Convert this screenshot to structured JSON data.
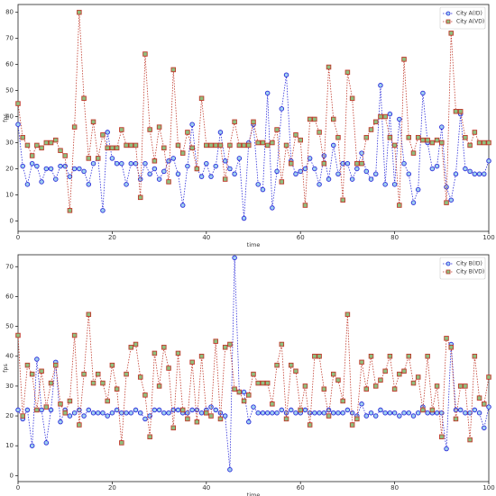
{
  "chart_data": [
    {
      "type": "line",
      "xlabel": "time",
      "ylabel": "fps",
      "legend": "upper right",
      "xlim": [
        0,
        100
      ],
      "ylim": [
        -4,
        83
      ],
      "xticks": [
        0,
        20,
        40,
        60,
        80,
        100
      ],
      "yticks": [
        0,
        10,
        20,
        30,
        40,
        50,
        60,
        70,
        80
      ],
      "x": [
        0,
        1,
        2,
        3,
        4,
        5,
        6,
        7,
        8,
        9,
        10,
        11,
        12,
        13,
        14,
        15,
        16,
        17,
        18,
        19,
        20,
        21,
        22,
        23,
        24,
        25,
        26,
        27,
        28,
        29,
        30,
        31,
        32,
        33,
        34,
        35,
        36,
        37,
        38,
        39,
        40,
        41,
        42,
        43,
        44,
        45,
        46,
        47,
        48,
        49,
        50,
        51,
        52,
        53,
        54,
        55,
        56,
        57,
        58,
        59,
        60,
        61,
        62,
        63,
        64,
        65,
        66,
        67,
        68,
        69,
        70,
        71,
        72,
        73,
        74,
        75,
        76,
        77,
        78,
        79,
        80,
        81,
        82,
        83,
        84,
        85,
        86,
        87,
        88,
        89,
        90,
        91,
        92,
        93,
        94,
        95,
        96,
        97,
        98,
        99,
        100
      ],
      "series": [
        {
          "name": "City A(ID)",
          "color": "#2b2bd9",
          "marker": "circle",
          "values": [
            37,
            21,
            14,
            22,
            21,
            15,
            20,
            20,
            16,
            21,
            21,
            17,
            20,
            20,
            19,
            14,
            22,
            24,
            4,
            34,
            24,
            22,
            22,
            14,
            22,
            22,
            16,
            22,
            18,
            20,
            16,
            19,
            23,
            24,
            18,
            6,
            21,
            37,
            20,
            17,
            22,
            17,
            21,
            34,
            23,
            20,
            18,
            24,
            1,
            30,
            37,
            14,
            12,
            49,
            5,
            19,
            43,
            56,
            23,
            18,
            19,
            20,
            24,
            20,
            14,
            25,
            16,
            29,
            18,
            22,
            22,
            16,
            20,
            26,
            19,
            16,
            18,
            52,
            14,
            41,
            14,
            39,
            22,
            18,
            7,
            12,
            49,
            30,
            20,
            21,
            36,
            13,
            8,
            18,
            41,
            20,
            19,
            18,
            18,
            18,
            23
          ]
        },
        {
          "name": "City A(VD)",
          "color": "#c0392b",
          "marker": "square",
          "values": [
            45,
            32,
            29,
            25,
            29,
            28,
            30,
            30,
            31,
            27,
            25,
            4,
            36,
            80,
            47,
            24,
            38,
            24,
            33,
            28,
            28,
            28,
            35,
            29,
            29,
            29,
            9,
            64,
            35,
            23,
            36,
            28,
            15,
            58,
            29,
            26,
            34,
            28,
            20,
            47,
            29,
            29,
            29,
            29,
            16,
            29,
            38,
            29,
            29,
            29,
            38,
            30,
            30,
            29,
            30,
            35,
            15,
            29,
            22,
            33,
            31,
            6,
            39,
            39,
            34,
            22,
            59,
            39,
            32,
            8,
            57,
            47,
            22,
            22,
            32,
            35,
            38,
            40,
            40,
            32,
            29,
            6,
            62,
            32,
            26,
            32,
            31,
            31,
            30,
            31,
            30,
            7,
            72,
            42,
            42,
            32,
            29,
            34,
            30,
            30,
            30
          ]
        }
      ]
    },
    {
      "type": "line",
      "xlabel": "time",
      "ylabel": "fps",
      "legend": "upper right",
      "xlim": [
        0,
        100
      ],
      "ylim": [
        -2,
        74
      ],
      "xticks": [
        0,
        20,
        40,
        60,
        80,
        100
      ],
      "yticks": [
        0,
        10,
        20,
        30,
        40,
        50,
        60,
        70
      ],
      "x": [
        0,
        1,
        2,
        3,
        4,
        5,
        6,
        7,
        8,
        9,
        10,
        11,
        12,
        13,
        14,
        15,
        16,
        17,
        18,
        19,
        20,
        21,
        22,
        23,
        24,
        25,
        26,
        27,
        28,
        29,
        30,
        31,
        32,
        33,
        34,
        35,
        36,
        37,
        38,
        39,
        40,
        41,
        42,
        43,
        44,
        45,
        46,
        47,
        48,
        49,
        50,
        51,
        52,
        53,
        54,
        55,
        56,
        57,
        58,
        59,
        60,
        61,
        62,
        63,
        64,
        65,
        66,
        67,
        68,
        69,
        70,
        71,
        72,
        73,
        74,
        75,
        76,
        77,
        78,
        79,
        80,
        81,
        82,
        83,
        84,
        85,
        86,
        87,
        88,
        89,
        90,
        91,
        92,
        93,
        94,
        95,
        96,
        97,
        98,
        99,
        100
      ],
      "series": [
        {
          "name": "City B(ID)",
          "color": "#2b2bd9",
          "marker": "circle",
          "values": [
            22,
            19,
            22,
            10,
            39,
            22,
            11,
            22,
            38,
            18,
            22,
            20,
            21,
            22,
            20,
            22,
            21,
            21,
            21,
            20,
            21,
            22,
            21,
            21,
            21,
            22,
            21,
            19,
            20,
            22,
            22,
            21,
            21,
            22,
            22,
            21,
            21,
            22,
            22,
            21,
            22,
            23,
            22,
            21,
            20,
            2,
            73,
            28,
            28,
            18,
            23,
            21,
            21,
            21,
            21,
            21,
            22,
            21,
            22,
            21,
            21,
            22,
            21,
            21,
            21,
            21,
            22,
            21,
            21,
            21,
            22,
            21,
            20,
            24,
            20,
            21,
            20,
            22,
            21,
            21,
            21,
            20,
            21,
            21,
            20,
            21,
            23,
            21,
            21,
            21,
            21,
            9,
            44,
            22,
            22,
            21,
            21,
            22,
            21,
            16,
            23
          ]
        },
        {
          "name": "City B(VD)",
          "color": "#c0392b",
          "marker": "square",
          "values": [
            47,
            20,
            37,
            34,
            22,
            35,
            23,
            31,
            37,
            24,
            21,
            25,
            47,
            17,
            34,
            54,
            31,
            34,
            31,
            25,
            37,
            29,
            11,
            34,
            43,
            44,
            33,
            27,
            13,
            41,
            30,
            43,
            36,
            16,
            41,
            22,
            19,
            38,
            18,
            40,
            21,
            20,
            45,
            19,
            43,
            44,
            29,
            28,
            25,
            27,
            34,
            31,
            31,
            31,
            24,
            37,
            44,
            19,
            37,
            35,
            22,
            30,
            17,
            40,
            40,
            29,
            20,
            34,
            32,
            25,
            54,
            17,
            19,
            38,
            29,
            40,
            30,
            32,
            35,
            40,
            29,
            34,
            35,
            40,
            31,
            33,
            22,
            40,
            22,
            30,
            13,
            46,
            43,
            19,
            30,
            30,
            12,
            40,
            26,
            24,
            33
          ]
        }
      ]
    }
  ]
}
